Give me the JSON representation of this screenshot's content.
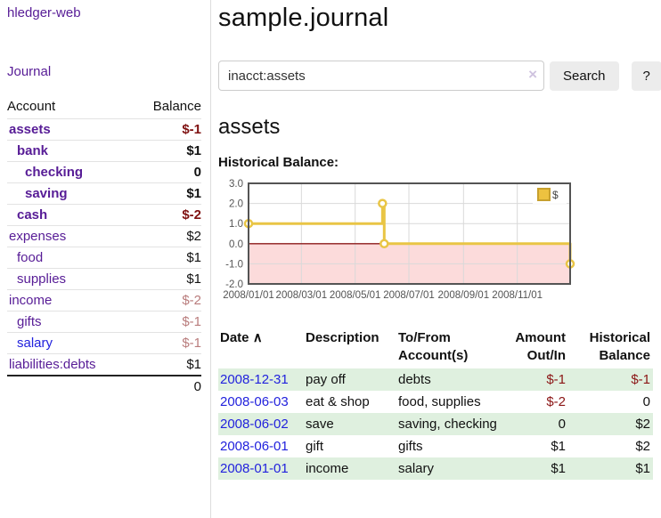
{
  "sidebar": {
    "brand": "hledger-web",
    "journal_link": "Journal",
    "accounts_table": {
      "account_header": "Account",
      "balance_header": "Balance",
      "rows": [
        {
          "name": "assets",
          "balance": "$-1",
          "indent": 1,
          "in_account": true,
          "balance_tone": "neg-strong",
          "link_tone": "purple"
        },
        {
          "name": "bank",
          "balance": "$1",
          "indent": 2,
          "in_account": true,
          "balance_tone": "plain",
          "link_tone": "purple"
        },
        {
          "name": "checking",
          "balance": "0",
          "indent": 3,
          "in_account": true,
          "balance_tone": "plain",
          "link_tone": "purple"
        },
        {
          "name": "saving",
          "balance": "$1",
          "indent": 3,
          "in_account": true,
          "balance_tone": "plain",
          "link_tone": "purple"
        },
        {
          "name": "cash",
          "balance": "$-2",
          "indent": 2,
          "in_account": true,
          "balance_tone": "neg-strong",
          "link_tone": "purple"
        },
        {
          "name": "expenses",
          "balance": "$2",
          "indent": 1,
          "in_account": false,
          "balance_tone": "plain",
          "link_tone": "purple"
        },
        {
          "name": "food",
          "balance": "$1",
          "indent": 2,
          "in_account": false,
          "balance_tone": "plain",
          "link_tone": "purple"
        },
        {
          "name": "supplies",
          "balance": "$1",
          "indent": 2,
          "in_account": false,
          "balance_tone": "plain",
          "link_tone": "purple"
        },
        {
          "name": "income",
          "balance": "$-2",
          "indent": 1,
          "in_account": false,
          "balance_tone": "neg-soft",
          "link_tone": "purple"
        },
        {
          "name": "gifts",
          "balance": "$-1",
          "indent": 2,
          "in_account": false,
          "balance_tone": "neg-soft",
          "link_tone": "purple"
        },
        {
          "name": "salary",
          "balance": "$-1",
          "indent": 2,
          "in_account": false,
          "balance_tone": "neg-soft",
          "link_tone": "blue"
        },
        {
          "name": "liabilities:debts",
          "balance": "$1",
          "indent": 1,
          "in_account": false,
          "balance_tone": "plain",
          "link_tone": "purple"
        }
      ],
      "total": "0"
    }
  },
  "header": {
    "title": "sample.journal"
  },
  "search": {
    "value": "inacct:assets",
    "clear_icon": "×",
    "search_button": "Search",
    "help_button": "?"
  },
  "account_page": {
    "title": "assets",
    "chart_label": "Historical Balance:"
  },
  "chart_data": {
    "type": "line",
    "title": "Historical Balance:",
    "step": true,
    "series": [
      {
        "name": "$",
        "color": "#e9c545",
        "legend_fill": "#edc240",
        "legend_border": "#c7a02e",
        "points": [
          [
            "2008-01-01",
            1
          ],
          [
            "2008-06-01",
            2
          ],
          [
            "2008-06-03",
            0
          ],
          [
            "2008-12-31",
            -1
          ]
        ]
      }
    ],
    "xlim": [
      "2008-01-01",
      "2008-12-31"
    ],
    "ylim": [
      -2,
      3
    ],
    "yticks": [
      "3.0",
      "2.0",
      "1.0",
      "0.0",
      "-1.0",
      "-2.0"
    ],
    "ytick_values": [
      3,
      2,
      1,
      0,
      -1,
      -2
    ],
    "xticks": [
      "2008/01/01",
      "2008/03/01",
      "2008/05/01",
      "2008/07/01",
      "2008/09/01",
      "2008/11/01"
    ],
    "xtick_dates": [
      "2008-01-01",
      "2008-03-01",
      "2008-05-01",
      "2008-07-01",
      "2008-09-01",
      "2008-11-01"
    ],
    "grid": true,
    "legend_position": "top-right",
    "negative_region_fill": "#fcdbdb",
    "zero_line_color": "#8b1a1a",
    "grid_color": "#d9d9d9",
    "border_color": "#545454",
    "tick_text_color": "#545454"
  },
  "register_table": {
    "headers": {
      "date": "Date",
      "sort_indicator": "∧",
      "description": "Description",
      "accounts": "To/From Account(s)",
      "amount": "Amount Out/In",
      "balance": "Historical Balance"
    },
    "rows": [
      {
        "date": "2008-12-31",
        "description": "pay off",
        "accounts": "debts",
        "amount": "$-1",
        "amount_negative": true,
        "balance": "$-1",
        "balance_negative": true
      },
      {
        "date": "2008-06-03",
        "description": "eat & shop",
        "accounts": "food, supplies",
        "amount": "$-2",
        "amount_negative": true,
        "balance": "0",
        "balance_negative": false
      },
      {
        "date": "2008-06-02",
        "description": "save",
        "accounts": "saving, checking",
        "amount": "0",
        "amount_negative": false,
        "balance": "$2",
        "balance_negative": false
      },
      {
        "date": "2008-06-01",
        "description": "gift",
        "accounts": "gifts",
        "amount": "$1",
        "amount_negative": false,
        "balance": "$2",
        "balance_negative": false
      },
      {
        "date": "2008-01-01",
        "description": "income",
        "accounts": "salary",
        "amount": "$1",
        "amount_negative": false,
        "balance": "$1",
        "balance_negative": false
      }
    ]
  }
}
